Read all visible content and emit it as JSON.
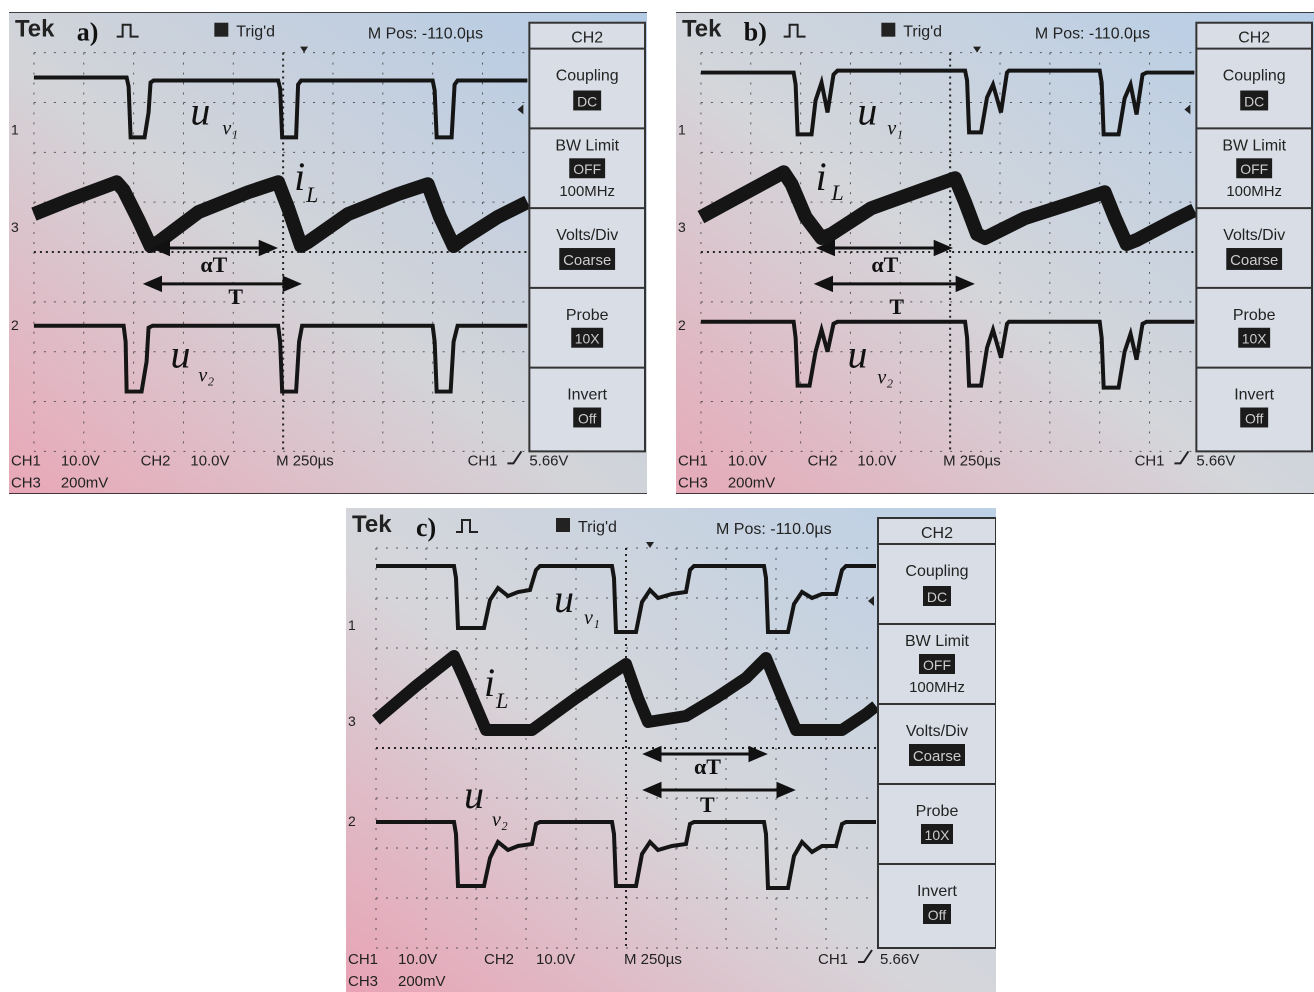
{
  "panels": [
    {
      "id": "a",
      "brand": "Tek",
      "letter": "a)",
      "trig": "Trig'd",
      "mpos": "M Pos: -110.0µs",
      "menu": {
        "channel": "CH2",
        "coupling": "Coupling",
        "coupling_val": "DC",
        "bw": "BW Limit",
        "bw_val": "OFF",
        "bw_freq": "100MHz",
        "vdiv": "Volts/Div",
        "vdiv_val": "Coarse",
        "probe": "Probe",
        "probe_val": "10X",
        "invert": "Invert",
        "invert_val": "Off"
      },
      "status": {
        "ch1": "CH1",
        "ch1_val": "10.0V",
        "ch2": "CH2",
        "ch2_val": "10.0V",
        "time": "M 250µs",
        "trig_src": "CH1",
        "trig_lvl": "5.66V",
        "ch3": "CH3",
        "ch3_val": "200mV"
      },
      "markers": {
        "m1": "1",
        "m3": "3",
        "m2": "2"
      },
      "labels": {
        "uv1": "u",
        "uv1_sub": "v₁",
        "il": "i",
        "il_sub": "L",
        "uv2": "u",
        "uv2_sub": "v₂",
        "alphaT": "αT",
        "T": "T"
      }
    },
    {
      "id": "b",
      "brand": "Tek",
      "letter": "b)",
      "trig": "Trig'd",
      "mpos": "M Pos: -110.0µs",
      "menu": {
        "channel": "CH2",
        "coupling": "Coupling",
        "coupling_val": "DC",
        "bw": "BW Limit",
        "bw_val": "OFF",
        "bw_freq": "100MHz",
        "vdiv": "Volts/Div",
        "vdiv_val": "Coarse",
        "probe": "Probe",
        "probe_val": "10X",
        "invert": "Invert",
        "invert_val": "Off"
      },
      "status": {
        "ch1": "CH1",
        "ch1_val": "10.0V",
        "ch2": "CH2",
        "ch2_val": "10.0V",
        "time": "M 250µs",
        "trig_src": "CH1",
        "trig_lvl": "5.66V",
        "ch3": "CH3",
        "ch3_val": "200mV"
      },
      "markers": {
        "m1": "1",
        "m3": "3",
        "m2": "2"
      },
      "labels": {
        "uv1": "u",
        "uv1_sub": "v₁",
        "il": "i",
        "il_sub": "L",
        "uv2": "u",
        "uv2_sub": "v₂",
        "alphaT": "αT",
        "T": "T"
      }
    },
    {
      "id": "c",
      "brand": "Tek",
      "letter": "c)",
      "trig": "Trig'd",
      "mpos": "M Pos: -110.0µs",
      "menu": {
        "channel": "CH2",
        "coupling": "Coupling",
        "coupling_val": "DC",
        "bw": "BW Limit",
        "bw_val": "OFF",
        "bw_freq": "100MHz",
        "vdiv": "Volts/Div",
        "vdiv_val": "Coarse",
        "probe": "Probe",
        "probe_val": "10X",
        "invert": "Invert",
        "invert_val": "Off"
      },
      "status": {
        "ch1": "CH1",
        "ch1_val": "10.0V",
        "ch2": "CH2",
        "ch2_val": "10.0V",
        "time": "M 250µs",
        "trig_src": "CH1",
        "trig_lvl": "5.66V",
        "ch3": "CH3",
        "ch3_val": "200mV"
      },
      "markers": {
        "m1": "1",
        "m3": "3",
        "m2": "2"
      },
      "labels": {
        "uv1": "u",
        "uv1_sub": "v₁",
        "il": "i",
        "il_sub": "L",
        "uv2": "u",
        "uv2_sub": "v₂",
        "alphaT": "αT",
        "T": "T"
      }
    }
  ],
  "colors": {
    "screen_left": "#e8b8c4",
    "screen_mid": "#d6d8dc",
    "screen_right": "#b9cfe6",
    "trace": "#151515",
    "grid": "#3a3a3a",
    "menu_bg": "#d9dee6",
    "menu_value_bg": "#1b1b1b"
  }
}
